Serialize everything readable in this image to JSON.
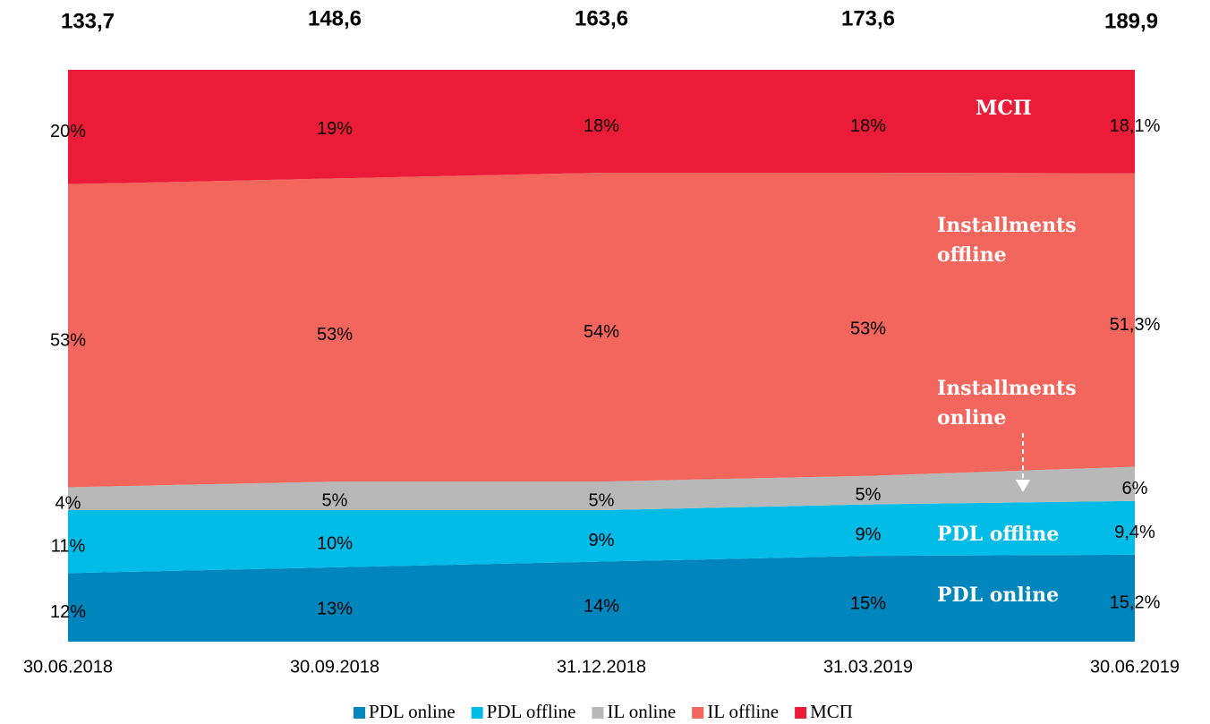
{
  "chart_data": {
    "type": "area",
    "stacked": true,
    "categories": [
      "30.06.2018",
      "30.09.2018",
      "31.12.2018",
      "31.03.2019",
      "30.06.2019"
    ],
    "ylim": [
      0,
      100
    ],
    "totals": {
      "values": [
        133.7,
        148.6,
        163.6,
        173.6,
        189.9
      ],
      "value_labels": [
        "133,7",
        "148,6",
        "163,6",
        "173,6",
        "189,9"
      ]
    },
    "series": [
      {
        "name": "PDL online",
        "color": "#0085bd",
        "values": [
          12,
          13,
          14,
          15,
          15.2
        ],
        "value_labels": [
          "12%",
          "13%",
          "14%",
          "15%",
          "15,2%"
        ]
      },
      {
        "name": "PDL offline",
        "color": "#00bce6",
        "values": [
          11,
          10,
          9,
          9,
          9.4
        ],
        "value_labels": [
          "11%",
          "10%",
          "9%",
          "9%",
          "9,4%"
        ]
      },
      {
        "name": "IL online",
        "color": "#b8b8b8",
        "values": [
          4,
          5,
          5,
          5,
          6
        ],
        "value_labels": [
          "4%",
          "5%",
          "5%",
          "5%",
          "6%"
        ]
      },
      {
        "name": "IL offline",
        "color": "#f2665e",
        "values": [
          53,
          53,
          54,
          53,
          51.3
        ],
        "value_labels": [
          "53%",
          "53%",
          "54%",
          "53%",
          "51,3%"
        ]
      },
      {
        "name": "МСП",
        "color": "#ec1c39",
        "values": [
          20,
          19,
          18,
          18,
          18.1
        ],
        "value_labels": [
          "20%",
          "19%",
          "18%",
          "18%",
          "18,1%"
        ]
      }
    ],
    "annotations": [
      {
        "lines": [
          "МСП"
        ]
      },
      {
        "lines": [
          "Installments",
          "offline"
        ]
      },
      {
        "lines": [
          "Installments",
          "online"
        ]
      },
      {
        "lines": [
          "PDL offline"
        ]
      },
      {
        "lines": [
          "PDL online"
        ]
      }
    ],
    "legend": "bottom"
  }
}
